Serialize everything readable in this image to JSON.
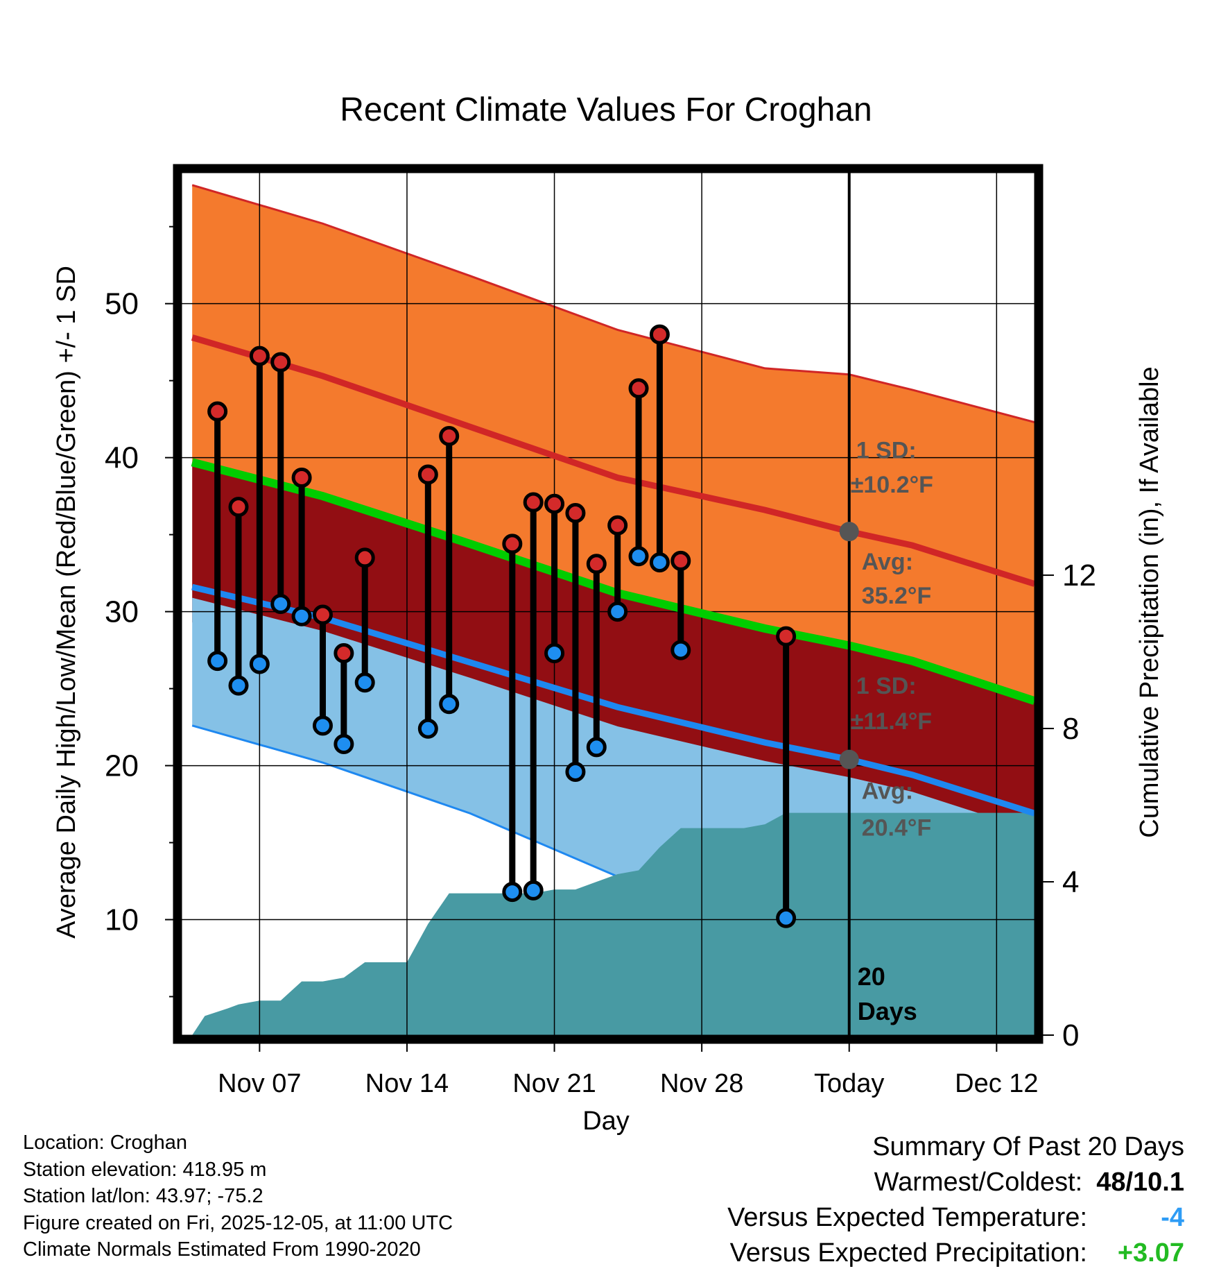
{
  "chart_data": {
    "type": "line",
    "title": "Recent Climate Values For Croghan",
    "xlabel": "Day",
    "ylabel_left": "Average Daily High/Low/Mean (Red/Blue/Green) +/- 1 SD",
    "ylabel_right": "Cumulative Precipitation (in), If Available",
    "x_range": [
      3.3,
      43.8
    ],
    "ylim_left": [
      2.5,
      58.5
    ],
    "ylim_right": [
      0,
      22.5
    ],
    "x_ticks": [
      {
        "x": 7,
        "label": "Nov 07"
      },
      {
        "x": 14,
        "label": "Nov 14"
      },
      {
        "x": 21,
        "label": "Nov 21"
      },
      {
        "x": 28,
        "label": "Nov 28"
      },
      {
        "x": 35,
        "label": "Today"
      },
      {
        "x": 42,
        "label": "Dec 12"
      }
    ],
    "y_ticks_left": [
      10,
      20,
      30,
      40,
      50
    ],
    "y_ticks_right": [
      0,
      4,
      8,
      12
    ],
    "today_x": 35,
    "normals": {
      "x": [
        3.8,
        10,
        17,
        24,
        31,
        35,
        38,
        43.8
      ],
      "high_mean": [
        47.8,
        45.3,
        42.0,
        38.7,
        36.6,
        35.2,
        34.3,
        31.8
      ],
      "high_upper": [
        57.7,
        55.2,
        51.8,
        48.3,
        45.8,
        45.4,
        44.4,
        42.3
      ],
      "mean": [
        39.7,
        37.5,
        34.4,
        31.2,
        28.9,
        27.8,
        26.8,
        24.2
      ],
      "low_mean": [
        31.6,
        29.6,
        26.7,
        23.8,
        21.5,
        20.4,
        19.4,
        16.9
      ],
      "low_lower": [
        22.6,
        20.2,
        16.9,
        12.8,
        9.9,
        9.0,
        8.1,
        5.8
      ]
    },
    "daily": [
      {
        "x": 5,
        "high": 43.0,
        "low": 26.8
      },
      {
        "x": 6,
        "high": 36.8,
        "low": 25.2
      },
      {
        "x": 7,
        "high": 46.6,
        "low": 26.6
      },
      {
        "x": 8,
        "high": 46.2,
        "low": 30.5
      },
      {
        "x": 9,
        "high": 38.7,
        "low": 29.7
      },
      {
        "x": 10,
        "high": 29.8,
        "low": 22.6
      },
      {
        "x": 11,
        "high": 27.3,
        "low": 21.4
      },
      {
        "x": 12,
        "high": 33.5,
        "low": 25.4
      },
      {
        "x": 15,
        "high": 38.9,
        "low": 22.4
      },
      {
        "x": 16,
        "high": 41.4,
        "low": 24.0
      },
      {
        "x": 19,
        "high": 34.4,
        "low": 11.8
      },
      {
        "x": 20,
        "high": 37.1,
        "low": 11.9
      },
      {
        "x": 21,
        "high": 37.0,
        "low": 27.3
      },
      {
        "x": 22,
        "high": 36.4,
        "low": 19.6
      },
      {
        "x": 23,
        "high": 33.1,
        "low": 21.2
      },
      {
        "x": 24,
        "high": 35.6,
        "low": 30.0
      },
      {
        "x": 25,
        "high": 44.5,
        "low": 33.6
      },
      {
        "x": 26,
        "high": 48.0,
        "low": 33.2
      },
      {
        "x": 27,
        "high": 33.3,
        "low": 27.5
      },
      {
        "x": 32,
        "high": 28.4,
        "low": 10.1
      }
    ],
    "precip_cumulative": {
      "x": [
        3.8,
        4.4,
        5.5,
        6.0,
        7.0,
        8.0,
        9.0,
        10.0,
        11.0,
        12.0,
        13.0,
        14.0,
        15.0,
        16.0,
        17.0,
        18.0,
        19.0,
        20.0,
        21.0,
        22.0,
        23.0,
        24.0,
        25.0,
        26.0,
        27.0,
        28.0,
        29.0,
        30.0,
        31.0,
        32.0,
        35.0,
        43.8
      ],
      "y": [
        0,
        0.5,
        0.7,
        0.8,
        0.9,
        0.9,
        1.4,
        1.4,
        1.5,
        1.9,
        1.9,
        1.9,
        2.9,
        3.7,
        3.7,
        3.7,
        3.7,
        3.7,
        3.8,
        3.8,
        4.0,
        4.2,
        4.3,
        4.9,
        5.4,
        5.4,
        5.4,
        5.4,
        5.5,
        5.8,
        5.8,
        5.8
      ]
    },
    "annotations": {
      "high_sd_label": "1 SD:",
      "high_sd_value": "±10.2°F",
      "high_avg_label": "Avg:",
      "high_avg_value": "35.2°F",
      "low_sd_label": "1 SD:",
      "low_sd_value": "±11.4°F",
      "low_avg_label": "Avg:",
      "low_avg_value": "20.4°F",
      "days_count": "20",
      "days_word": "Days"
    }
  },
  "footer": {
    "location": "Location: Croghan",
    "elevation": "Station elevation: 418.95 m",
    "latlon": "Station lat/lon: 43.97; -75.2",
    "created": "Figure created on Fri, 2025-12-05, at 11:00 UTC",
    "normals": "Climate Normals Estimated From 1990-2020"
  },
  "summary": {
    "title": "Summary Of Past 20 Days",
    "warm_cold_label": "Warmest/Coldest:",
    "warm_cold_value": "48/10.1",
    "temp_label": "Versus Expected Temperature:",
    "temp_value": "-4",
    "precip_label": "Versus Expected Precipitation:",
    "precip_value": "+3.07"
  },
  "colors": {
    "orange_band": "#f47a2d",
    "high_line": "#d02626",
    "dark_red_band": "#920e13",
    "green_line": "#00cc00",
    "light_blue_band": "#85c1e6",
    "low_line": "#1e88f0",
    "precip_fill": "#489aa3",
    "temp_anomaly": "#2e9cf5",
    "precip_anomaly": "#22bb22"
  }
}
